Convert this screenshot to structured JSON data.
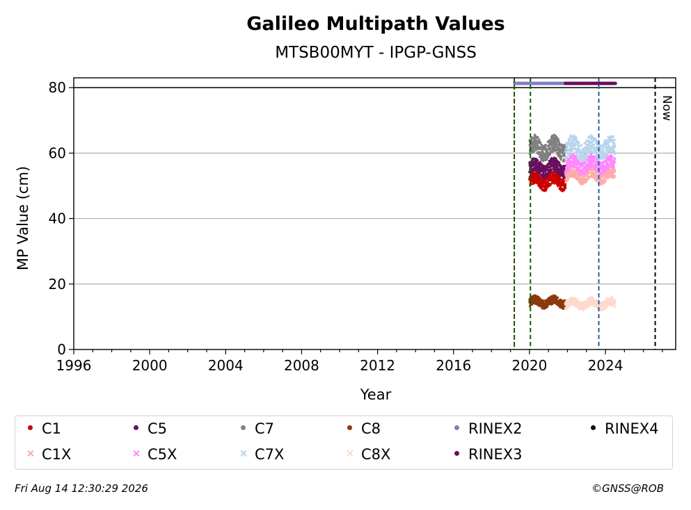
{
  "chart_data": {
    "type": "scatter",
    "title": "Galileo Multipath Values",
    "subtitle": "MTSB00MYT - IPGP-GNSS",
    "xlabel": "Year",
    "ylabel": "MP Value (cm)",
    "xlim": [
      1996,
      2027.7
    ],
    "ylim": [
      0,
      83
    ],
    "x_ticks": [
      1996,
      2000,
      2004,
      2008,
      2012,
      2016,
      2020,
      2024
    ],
    "y_ticks": [
      0,
      20,
      40,
      60,
      80
    ],
    "grid": "y",
    "reference_line_y": 80,
    "vlines": [
      {
        "x": 2019.2,
        "color": "#cc0000",
        "style": "dotted"
      },
      {
        "x": 2019.2,
        "color": "#006400",
        "style": "dashed"
      },
      {
        "x": 2020.05,
        "color": "#006400",
        "style": "dashed"
      },
      {
        "x": 2023.65,
        "color": "#1f5fa8",
        "style": "dashed"
      },
      {
        "x": 2026.62,
        "color": "#000000",
        "style": "dashed",
        "label": "Now"
      }
    ],
    "series": [
      {
        "name": "C1",
        "color": "#cc0000",
        "marker": "dot",
        "x_range": [
          2020.0,
          2021.9
        ],
        "y_center": 51.5,
        "y_spread": 3
      },
      {
        "name": "C5",
        "color": "#6a0f5f",
        "marker": "dot",
        "x_range": [
          2020.0,
          2021.9
        ],
        "y_center": 55.5,
        "y_spread": 3
      },
      {
        "name": "C7",
        "color": "#808080",
        "marker": "dot",
        "x_range": [
          2020.0,
          2021.9
        ],
        "y_center": 61.5,
        "y_spread": 4
      },
      {
        "name": "C8",
        "color": "#8b3a0f",
        "marker": "dot",
        "x_range": [
          2020.0,
          2021.9
        ],
        "y_center": 14.5,
        "y_spread": 2
      },
      {
        "name": "RINEX2",
        "color": "#8080c0",
        "marker": "dot",
        "x_range": [
          2019.2,
          2021.9
        ],
        "y_center": 81.3,
        "y_spread": 0
      },
      {
        "name": "RINEX4",
        "color": "#1a0a1a",
        "marker": "dot",
        "x_range": [],
        "y_center": 0,
        "y_spread": 0
      },
      {
        "name": "C1X",
        "color": "#ffaaaa",
        "marker": "cross",
        "x_range": [
          2021.9,
          2024.5
        ],
        "y_center": 53.5,
        "y_spread": 3
      },
      {
        "name": "C5X",
        "color": "#ff88ff",
        "marker": "cross",
        "x_range": [
          2021.9,
          2024.5
        ],
        "y_center": 56.5,
        "y_spread": 3
      },
      {
        "name": "C7X",
        "color": "#b8d4ee",
        "marker": "cross",
        "x_range": [
          2021.9,
          2024.5
        ],
        "y_center": 61.5,
        "y_spread": 4
      },
      {
        "name": "C8X",
        "color": "#ffd9cc",
        "marker": "cross",
        "x_range": [
          2021.9,
          2024.5
        ],
        "y_center": 14.0,
        "y_spread": 2
      },
      {
        "name": "RINEX3",
        "color": "#6a0f5f",
        "marker": "dot",
        "x_range": [
          2021.9,
          2024.5
        ],
        "y_center": 81.3,
        "y_spread": 0
      }
    ]
  },
  "footer": {
    "date": "Fri Aug 14 12:30:29 2026",
    "credit": "©GNSS@ROB"
  }
}
